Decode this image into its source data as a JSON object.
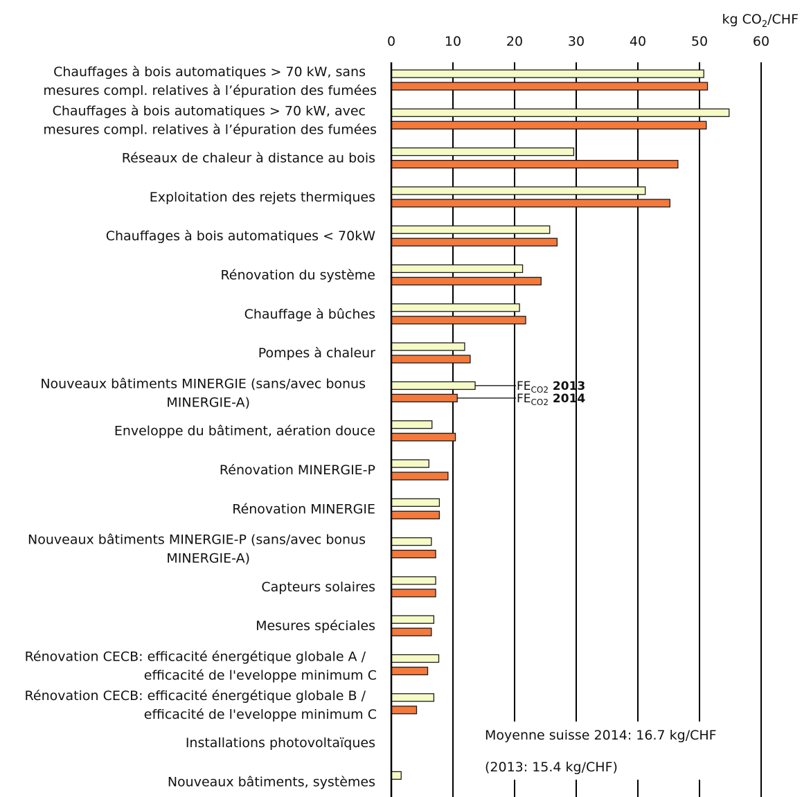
{
  "chart_data": {
    "type": "bar",
    "orientation": "horizontal",
    "unit": "kg CO",
    "unit_sub": "2",
    "unit_tail": "/CHF",
    "xlim": [
      0,
      60
    ],
    "ticks": [
      0,
      10,
      20,
      30,
      40,
      50,
      60
    ],
    "grid": true,
    "legend": "annotation",
    "colors": {
      "2013": "#f6fbc6",
      "2014": "#f4793b",
      "outline": "#1a1a1a"
    },
    "categories": [
      [
        "Chauffages à bois automatiques > 70 kW, sans",
        "mesures compl. relatives à l’épuration des fumées"
      ],
      [
        "Chauffages à bois automatiques > 70 kW, avec",
        "mesures compl. relatives à l’épuration des fumées"
      ],
      [
        "Réseaux de chaleur à distance au bois"
      ],
      [
        "Exploitation des rejets thermiques"
      ],
      [
        "Chauffages à bois automatiques < 70kW"
      ],
      [
        "Rénovation du système"
      ],
      [
        "Chauffage à bûches"
      ],
      [
        "Pompes à chaleur"
      ],
      [
        "Nouveaux bâtiments MINERGIE (sans/avec bonus",
        "MINERGIE-A)"
      ],
      [
        "Enveloppe du bâtiment, aération douce"
      ],
      [
        "Rénovation MINERGIE-P"
      ],
      [
        "Rénovation MINERGIE"
      ],
      [
        "Nouveaux bâtiments MINERGIE-P (sans/avec bonus",
        "MINERGIE-A)"
      ],
      [
        "Capteurs solaires"
      ],
      [
        "Mesures spéciales"
      ],
      [
        "Rénovation CECB: efficacité énergétique globale A /",
        "efficacité de l'eveloppe minimum C"
      ],
      [
        "Rénovation CECB: efficacité énergétique globale B /",
        "efficacité de l'eveloppe minimum C"
      ],
      [
        "Installations photovoltaïques"
      ],
      [
        "Nouveaux bâtiments, systèmes"
      ]
    ],
    "series": [
      {
        "key": "2013",
        "values": [
          50.7,
          54.8,
          29.6,
          41.2,
          25.7,
          21.3,
          20.8,
          11.9,
          13.6,
          6.6,
          6.1,
          7.8,
          6.5,
          7.2,
          6.9,
          7.7,
          6.9,
          0,
          1.6
        ]
      },
      {
        "key": "2014",
        "values": [
          51.3,
          51.1,
          46.5,
          45.2,
          26.9,
          24.3,
          21.8,
          12.8,
          10.7,
          10.4,
          9.2,
          7.8,
          7.2,
          7.2,
          6.5,
          5.9,
          4.1,
          0,
          0
        ]
      }
    ],
    "annotations": [
      {
        "prefix": "FE",
        "sub": "CO2",
        "year": "2013"
      },
      {
        "prefix": "FE",
        "sub": "CO2",
        "year": "2014"
      }
    ],
    "notes": [
      "Moyenne suisse 2014: 16.7 kg/CHF",
      "(2013: 15.4 kg/CHF)"
    ]
  }
}
